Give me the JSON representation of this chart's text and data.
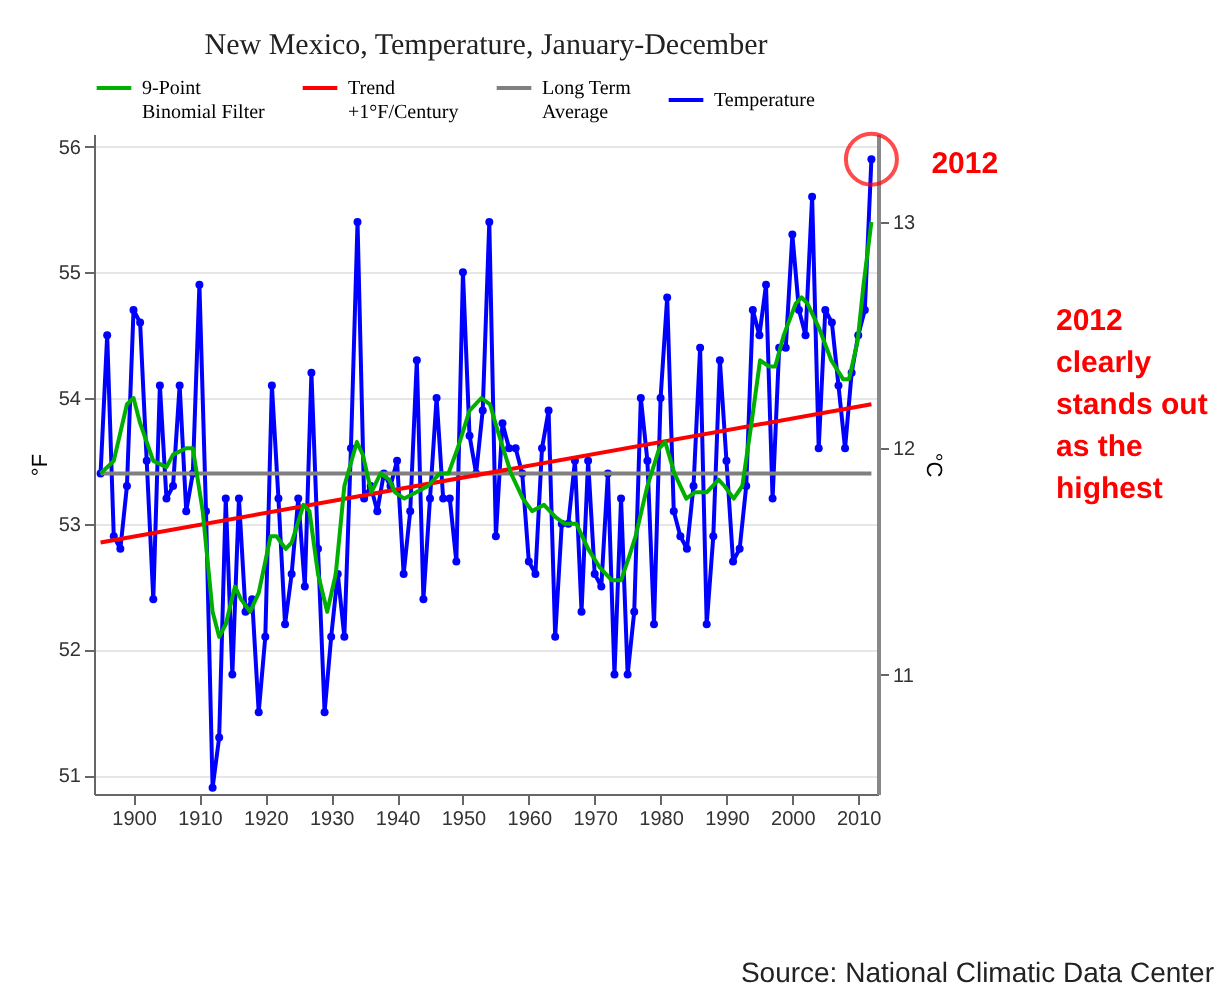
{
  "chart_data": {
    "type": "line",
    "title": "New Mexico, Temperature, January-December",
    "ylabel": "°F",
    "y2label": "°C",
    "xlim": [
      1894,
      2013
    ],
    "xticks": [
      1900,
      1910,
      1920,
      1930,
      1940,
      1950,
      1960,
      1970,
      1980,
      1990,
      2000,
      2010
    ],
    "ylim": [
      50.85,
      56.1
    ],
    "yticks": [
      51,
      52,
      53,
      54,
      55,
      56
    ],
    "y2lim": [
      10.472,
      13.389
    ],
    "y2ticks": [
      11,
      12,
      13
    ],
    "grid": "y",
    "legend": "top",
    "line_style": "solid",
    "series": [
      {
        "name": "9-Point\nBinomial Filter",
        "color": "#00b000",
        "marker": "none",
        "x": [
          1895,
          1897,
          1899,
          1900,
          1901,
          1903,
          1905,
          1906,
          1908,
          1909,
          1910.5,
          1912,
          1913,
          1914,
          1915.4,
          1916.3,
          1917.7,
          1919,
          1920.8,
          1921.7,
          1923.1,
          1924,
          1925.8,
          1926.7,
          1928,
          1929.4,
          1930.7,
          1932,
          1933.9,
          1934.8,
          1936.1,
          1937.5,
          1938.8,
          1939.7,
          1941.1,
          1942.9,
          1944.7,
          1946.5,
          1947.8,
          1949.2,
          1951,
          1952.8,
          1954.1,
          1955.5,
          1957.3,
          1959.1,
          1960.5,
          1962.3,
          1964.1,
          1965.4,
          1967.2,
          1969,
          1970.8,
          1972.6,
          1974,
          1975.3,
          1976.2,
          1978,
          1979.8,
          1980.7,
          1982.1,
          1983.9,
          1985.2,
          1987,
          1988.8,
          1989.7,
          1991.1,
          1992.4,
          1993.8,
          1995.1,
          1996.5,
          1997.4,
          1998.7,
          2000.5,
          2001.4,
          2002.3,
          2004.1,
          2005.9,
          2007.7,
          2008.6,
          2009.9,
          2010.8,
          2012
        ],
        "values": [
          53.4,
          53.5,
          53.95,
          54.0,
          53.8,
          53.5,
          53.45,
          53.55,
          53.6,
          53.6,
          53.1,
          52.3,
          52.1,
          52.2,
          52.5,
          52.4,
          52.3,
          52.45,
          52.9,
          52.9,
          52.8,
          52.85,
          53.15,
          53.1,
          52.6,
          52.3,
          52.6,
          53.3,
          53.65,
          53.55,
          53.25,
          53.4,
          53.35,
          53.25,
          53.2,
          53.25,
          53.3,
          53.4,
          53.4,
          53.6,
          53.9,
          54.0,
          53.95,
          53.7,
          53.4,
          53.2,
          53.1,
          53.15,
          53.05,
          53.0,
          53.0,
          52.8,
          52.65,
          52.55,
          52.55,
          52.75,
          52.9,
          53.3,
          53.6,
          53.65,
          53.4,
          53.2,
          53.25,
          53.25,
          53.35,
          53.3,
          53.2,
          53.3,
          53.8,
          54.3,
          54.25,
          54.25,
          54.5,
          54.75,
          54.8,
          54.75,
          54.55,
          54.3,
          54.15,
          54.15,
          54.45,
          54.9,
          55.4
        ]
      },
      {
        "name": "Trend\n+1°F/Century",
        "color": "#ff0000",
        "marker": "none",
        "x": [
          1895,
          2012
        ],
        "values": [
          52.85,
          53.95
        ]
      },
      {
        "name": "Long Term\nAverage",
        "color": "#808080",
        "marker": "none",
        "x": [
          1895,
          2012
        ],
        "values": [
          53.4,
          53.4
        ]
      },
      {
        "name": "Temperature",
        "color": "#0000ff",
        "marker": "circle",
        "x": [
          1895,
          1896,
          1897,
          1898,
          1899,
          1900,
          1901,
          1902,
          1903,
          1904,
          1905,
          1906,
          1907,
          1908,
          1909,
          1910,
          1911,
          1912,
          1913,
          1914,
          1915,
          1916,
          1917,
          1918,
          1919,
          1920,
          1921,
          1922,
          1923,
          1924,
          1925,
          1926,
          1927,
          1928,
          1929,
          1930,
          1931,
          1932,
          1933,
          1934,
          1935,
          1936,
          1937,
          1938,
          1939,
          1940,
          1941,
          1942,
          1943,
          1944,
          1945,
          1946,
          1947,
          1948,
          1949,
          1950,
          1951,
          1952,
          1953,
          1954,
          1955,
          1956,
          1957,
          1958,
          1959,
          1960,
          1961,
          1962,
          1963,
          1964,
          1965,
          1966,
          1967,
          1968,
          1969,
          1970,
          1971,
          1972,
          1973,
          1974,
          1975,
          1976,
          1977,
          1978,
          1979,
          1980,
          1981,
          1982,
          1983,
          1984,
          1985,
          1986,
          1987,
          1988,
          1989,
          1990,
          1991,
          1992,
          1993,
          1994,
          1995,
          1996,
          1997,
          1998,
          1999,
          2000,
          2001,
          2002,
          2003,
          2004,
          2005,
          2006,
          2007,
          2008,
          2009,
          2010,
          2011,
          2012
        ],
        "values": [
          53.4,
          54.5,
          52.9,
          52.8,
          53.3,
          54.7,
          54.6,
          53.5,
          52.4,
          54.1,
          53.2,
          53.3,
          54.1,
          53.1,
          53.4,
          54.9,
          53.1,
          50.9,
          51.3,
          53.2,
          51.8,
          53.2,
          52.3,
          52.4,
          51.5,
          52.1,
          54.1,
          53.2,
          52.2,
          52.6,
          53.2,
          52.5,
          54.2,
          52.8,
          51.5,
          52.1,
          52.6,
          52.1,
          53.6,
          55.4,
          53.2,
          53.3,
          53.1,
          53.4,
          53.3,
          53.5,
          52.6,
          53.1,
          54.3,
          52.4,
          53.2,
          54.0,
          53.2,
          53.2,
          52.7,
          55.0,
          53.7,
          53.4,
          53.9,
          55.4,
          52.9,
          53.8,
          53.6,
          53.6,
          53.4,
          52.7,
          52.6,
          53.6,
          53.9,
          52.1,
          53.0,
          53.0,
          53.5,
          52.3,
          53.5,
          52.6,
          52.5,
          53.4,
          51.8,
          53.2,
          51.8,
          52.3,
          54.0,
          53.5,
          52.2,
          54.0,
          54.8,
          53.1,
          52.9,
          52.8,
          53.3,
          54.4,
          52.2,
          52.9,
          54.3,
          53.5,
          52.7,
          52.8,
          53.3,
          54.7,
          54.5,
          54.9,
          53.2,
          54.4,
          54.4,
          55.3,
          54.7,
          54.5,
          55.6,
          53.6,
          54.7,
          54.6,
          54.1,
          53.6,
          54.2,
          54.5,
          54.7,
          55.9
        ]
      }
    ],
    "annotations": [
      {
        "text": "2012",
        "x": 2012,
        "y": 55.9
      },
      "2012 clearly stands out as the highest",
      "Source: National Climatic Data Center"
    ]
  }
}
